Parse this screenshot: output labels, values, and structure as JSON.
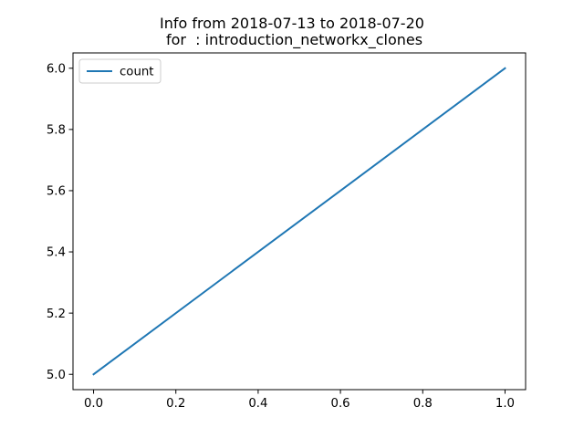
{
  "chart_data": {
    "type": "line",
    "title": "Info from 2018-07-13 to 2018-07-20",
    "subtitle": " for  : introduction_networkx_clones",
    "xlabel": "",
    "ylabel": "",
    "xlim": [
      -0.05,
      1.05
    ],
    "ylim": [
      4.95,
      6.05
    ],
    "xticks": [
      0.0,
      0.2,
      0.4,
      0.6,
      0.8,
      1.0
    ],
    "xtick_labels": [
      "0.0",
      "0.2",
      "0.4",
      "0.6",
      "0.8",
      "1.0"
    ],
    "yticks": [
      5.0,
      5.2,
      5.4,
      5.6,
      5.8,
      6.0
    ],
    "ytick_labels": [
      "5.0",
      "5.2",
      "5.4",
      "5.6",
      "5.8",
      "6.0"
    ],
    "grid": false,
    "legend_position": "upper-left",
    "series": [
      {
        "name": "count",
        "color": "#1f77b4",
        "x": [
          0,
          1
        ],
        "y": [
          5,
          6
        ]
      }
    ]
  }
}
